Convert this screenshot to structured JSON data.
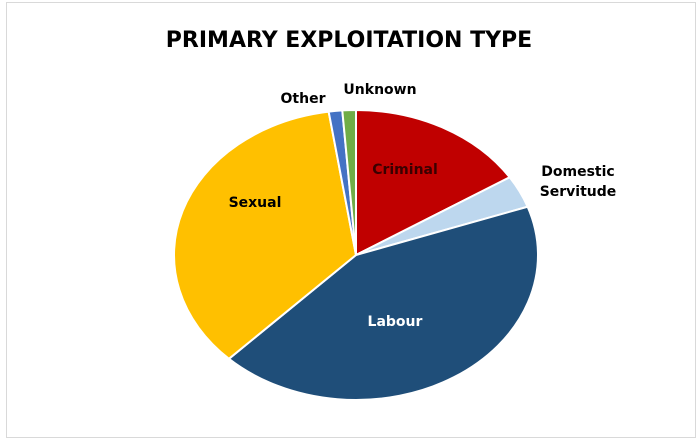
{
  "chart_data": {
    "type": "pie",
    "title": "PRIMARY EXPLOITATION TYPE",
    "categories": [
      "Criminal",
      "Domestic Servitude",
      "Labour",
      "Sexual",
      "Other",
      "Unknown"
    ],
    "values": [
      16,
      3.6,
      42.7,
      35.3,
      1.2,
      1.2
    ],
    "colors": [
      "#c00000",
      "#bdd7ee",
      "#1f4e79",
      "#ffc000",
      "#4472c4",
      "#70ad47"
    ]
  }
}
